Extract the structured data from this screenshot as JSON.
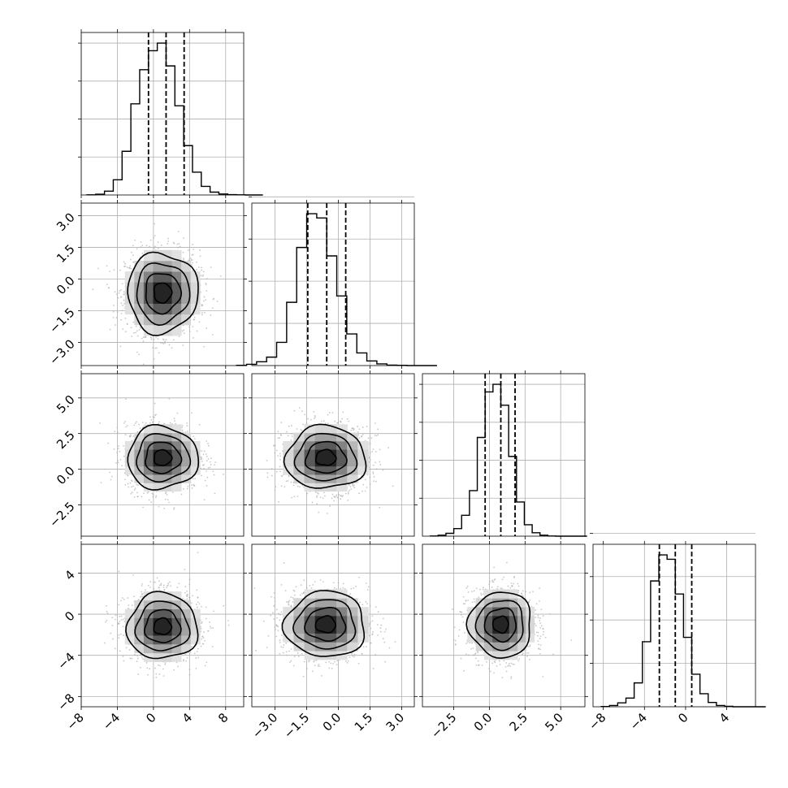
{
  "chart_data": {
    "type": "corner",
    "n_params": 4,
    "grid": true,
    "params": [
      {
        "index": 0,
        "mean": 1.4,
        "sd": 1.95,
        "range": [
          -8,
          10
        ],
        "ticks": [
          -8,
          -4,
          0,
          4,
          8
        ],
        "tick_labels": [
          "−8",
          "−4",
          "0",
          "4",
          "8"
        ],
        "quantiles": [
          -0.55,
          1.4,
          3.4
        ]
      },
      {
        "index": 1,
        "mean": -0.55,
        "sd": 0.95,
        "range": [
          -4.1,
          3.6
        ],
        "ticks": [
          -3.0,
          -1.5,
          0.0,
          1.5,
          3.0
        ],
        "tick_labels": [
          "−3.0",
          "−1.5",
          "0.0",
          "1.5",
          "3.0"
        ],
        "quantiles": [
          -1.45,
          -0.55,
          0.35
        ]
      },
      {
        "index": 2,
        "mean": 0.8,
        "sd": 1.1,
        "range": [
          -4.7,
          6.7
        ],
        "ticks": [
          -2.5,
          0.0,
          2.5,
          5.0
        ],
        "tick_labels": [
          "−2.5",
          "0.0",
          "2.5",
          "5.0"
        ],
        "quantiles": [
          -0.3,
          0.8,
          1.8
        ]
      },
      {
        "index": 3,
        "mean": -1.0,
        "sd": 1.6,
        "range": [
          -9.0,
          6.8
        ],
        "ticks": [
          -8,
          -4,
          0,
          4
        ],
        "tick_labels": [
          "−8",
          "−4",
          "0",
          "4"
        ],
        "quantiles": [
          -2.55,
          -1.0,
          0.6
        ]
      }
    ],
    "histograms": [
      {
        "param": 0,
        "bins": 20,
        "counts": [
          1,
          4,
          20,
          80,
          230,
          480,
          660,
          760,
          800,
          680,
          470,
          260,
          120,
          45,
          15,
          5,
          2,
          1,
          0,
          0
        ]
      },
      {
        "param": 1,
        "bins": 20,
        "counts": [
          1,
          6,
          18,
          40,
          110,
          300,
          560,
          720,
          700,
          520,
          330,
          150,
          60,
          22,
          8,
          2,
          1,
          0,
          0,
          0
        ]
      },
      {
        "param": 2,
        "bins": 20,
        "counts": [
          1,
          5,
          15,
          40,
          110,
          240,
          520,
          760,
          800,
          690,
          420,
          180,
          60,
          18,
          5,
          1,
          0,
          0,
          0,
          0
        ]
      },
      {
        "param": 3,
        "bins": 20,
        "counts": [
          1,
          6,
          18,
          40,
          110,
          300,
          580,
          700,
          680,
          520,
          320,
          150,
          60,
          20,
          6,
          2,
          0,
          0,
          0,
          0
        ]
      }
    ],
    "pairs": [
      {
        "x_param": 0,
        "y_param": 1,
        "center": [
          1.0,
          -0.65
        ],
        "contour_sigmas": [
          0.5,
          1.0,
          1.5,
          2.0
        ]
      },
      {
        "x_param": 0,
        "y_param": 2,
        "center": [
          1.0,
          0.8
        ],
        "contour_sigmas": [
          0.5,
          1.0,
          1.5,
          2.0
        ]
      },
      {
        "x_param": 1,
        "y_param": 2,
        "center": [
          -0.6,
          0.8
        ],
        "contour_sigmas": [
          0.5,
          1.0,
          1.5,
          2.0
        ]
      },
      {
        "x_param": 0,
        "y_param": 3,
        "center": [
          1.0,
          -1.2
        ],
        "contour_sigmas": [
          0.5,
          1.0,
          1.5,
          2.0
        ]
      },
      {
        "x_param": 1,
        "y_param": 3,
        "center": [
          -0.6,
          -1.0
        ],
        "contour_sigmas": [
          0.5,
          1.0,
          1.5,
          2.0
        ]
      },
      {
        "x_param": 2,
        "y_param": 3,
        "center": [
          0.8,
          -1.0
        ],
        "contour_sigmas": [
          0.5,
          1.0,
          1.5,
          2.0
        ]
      }
    ],
    "colors": {
      "points": "#b0b0b0",
      "lines": "#000000",
      "grid": "#b0b0b0",
      "density_max": "#000000"
    }
  }
}
